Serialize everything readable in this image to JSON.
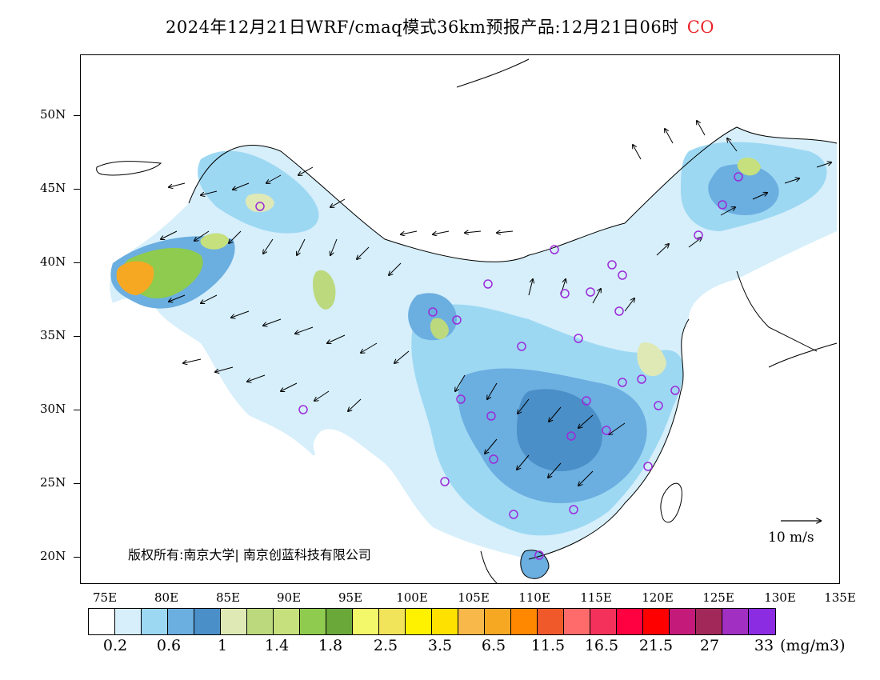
{
  "title": {
    "text": "2024年12月21日WRF/cmaq模式36km预报产品:12月21日06时",
    "species": "CO"
  },
  "map": {
    "lat_labels": [
      "50N",
      "45N",
      "40N",
      "35N",
      "30N",
      "25N",
      "20N"
    ],
    "lon_labels": [
      "75E",
      "80E",
      "85E",
      "90E",
      "95E",
      "100E",
      "105E",
      "110E",
      "115E",
      "120E",
      "125E",
      "130E",
      "135E"
    ],
    "copyright": "版权所有:南京大学| 南京创蓝科技有限公司",
    "wind_scale_label": "10 m/s"
  },
  "colorbar": {
    "colors": [
      "#ffffff",
      "#d6effb",
      "#9dd8f3",
      "#6baee0",
      "#4a8fc7",
      "#dfe9b6",
      "#bcd97e",
      "#c5e07c",
      "#8ecb4e",
      "#6ba83a",
      "#f3f86a",
      "#f2e45a",
      "#fff200",
      "#ffe100",
      "#f8b84a",
      "#f7a823",
      "#ff8800",
      "#f05a2a",
      "#ff6b6b",
      "#f4315a",
      "#ff0040",
      "#ff0000",
      "#c41a7a",
      "#a3285a",
      "#a02fc2",
      "#8b2be2"
    ],
    "labels": [
      "0.2",
      "0.6",
      "1",
      "1.4",
      "1.8",
      "2.5",
      "3.5",
      "6.5",
      "11.5",
      "16.5",
      "21.5",
      "27",
      "33"
    ],
    "unit": "(mg/m3)"
  }
}
